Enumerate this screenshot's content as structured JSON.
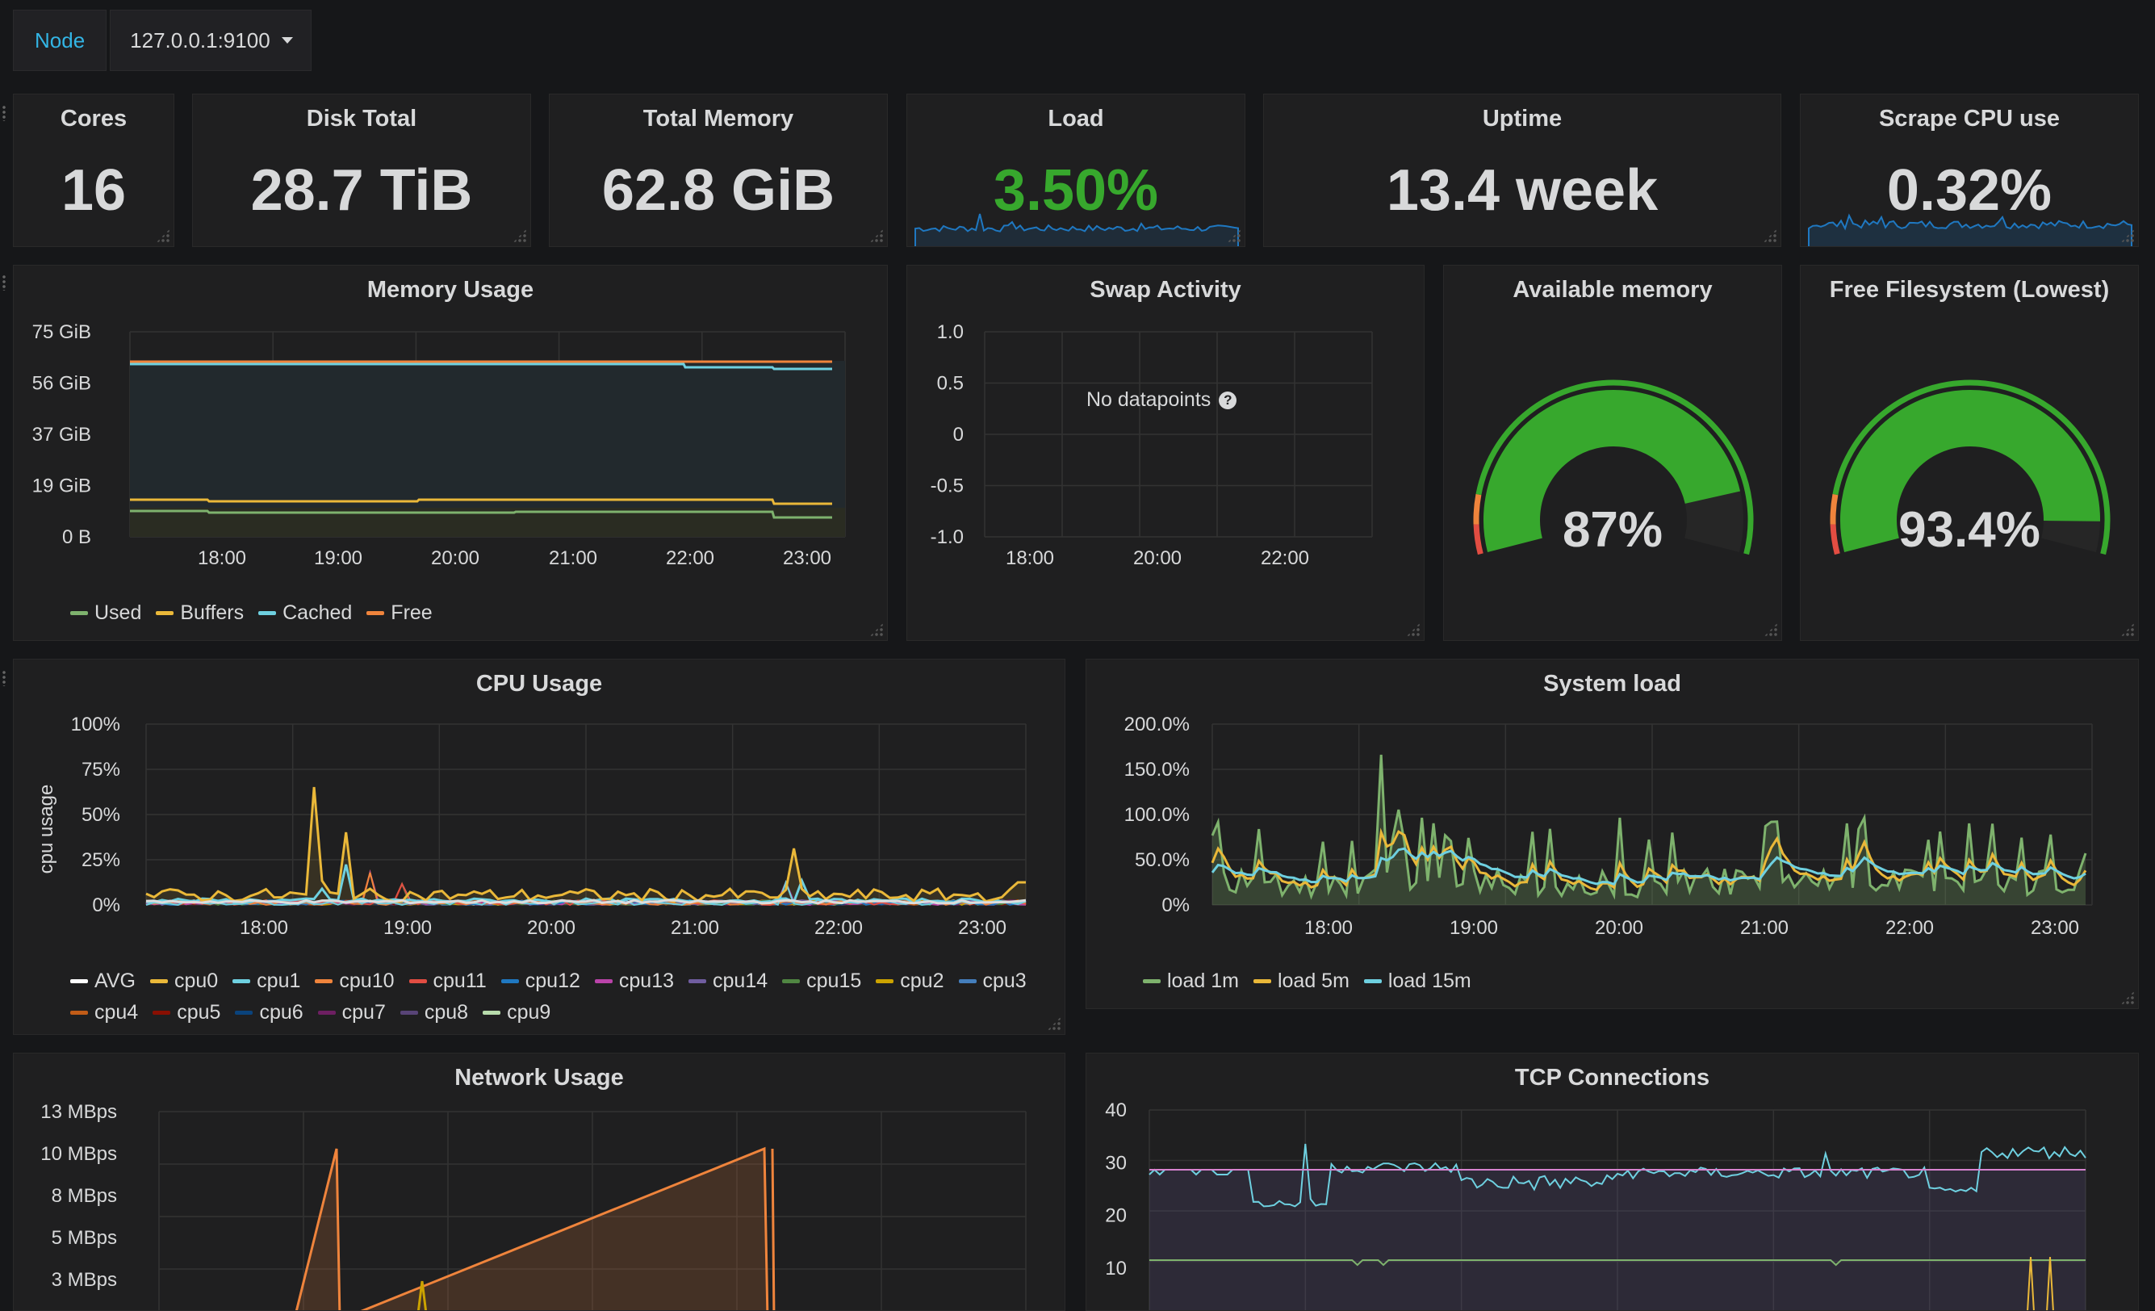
{
  "variables": {
    "label": "Node",
    "value": "127.0.0.1:9100"
  },
  "stats": {
    "cores": {
      "title": "Cores",
      "value": "16"
    },
    "disk_total": {
      "title": "Disk Total",
      "value": "28.7 TiB"
    },
    "total_memory": {
      "title": "Total Memory",
      "value": "62.8 GiB"
    },
    "load": {
      "title": "Load",
      "value": "3.50%",
      "color": "#37a82d"
    },
    "uptime": {
      "title": "Uptime",
      "value": "13.4 week"
    },
    "scrape_cpu": {
      "title": "Scrape CPU use",
      "value": "0.32%"
    }
  },
  "colors": {
    "green": "#7eb26d",
    "yellow": "#eab839",
    "cyan": "#6ed0e0",
    "orange": "#ef843c",
    "red": "#e24d42",
    "blue": "#1f78c1",
    "purple": "#ba43a9",
    "violet": "#705da0",
    "dark_green": "#508642",
    "gold": "#cca300",
    "steel": "#447ebc",
    "rust": "#c15c17",
    "maroon": "#890f02",
    "navy": "#0a437c",
    "plum": "#6d1f62",
    "lavender": "#584477",
    "light_green": "#b7dbab",
    "white": "#ffffff",
    "pink": "#d683ce",
    "gauge_green": "#37a82d",
    "gauge_orange": "#e5ac0e",
    "gauge_red": "#e24d42"
  },
  "memory_usage": {
    "title": "Memory Usage",
    "y_ticks": [
      "75 GiB",
      "56 GiB",
      "37 GiB",
      "19 GiB",
      "0 B"
    ],
    "x_ticks": [
      "18:00",
      "19:00",
      "20:00",
      "21:00",
      "22:00",
      "23:00"
    ],
    "legend": [
      "Used",
      "Buffers",
      "Cached",
      "Free"
    ]
  },
  "swap_activity": {
    "title": "Swap Activity",
    "y_ticks": [
      "1.0",
      "0.5",
      "0",
      "-0.5",
      "-1.0"
    ],
    "x_ticks": [
      "18:00",
      "20:00",
      "22:00"
    ],
    "no_data": "No datapoints"
  },
  "available_memory": {
    "title": "Available memory",
    "value": "87%",
    "fraction": 0.87
  },
  "free_filesystem": {
    "title": "Free Filesystem (Lowest)",
    "value": "93.4%",
    "fraction": 0.934
  },
  "cpu_usage": {
    "title": "CPU Usage",
    "ylabel": "cpu usage",
    "y_ticks": [
      "100%",
      "75%",
      "50%",
      "25%",
      "0%"
    ],
    "x_ticks": [
      "18:00",
      "19:00",
      "20:00",
      "21:00",
      "22:00",
      "23:00"
    ],
    "legend": [
      "AVG",
      "cpu0",
      "cpu1",
      "cpu10",
      "cpu11",
      "cpu12",
      "cpu13",
      "cpu14",
      "cpu15",
      "cpu2",
      "cpu3",
      "cpu4",
      "cpu5",
      "cpu6",
      "cpu7",
      "cpu8",
      "cpu9"
    ]
  },
  "system_load": {
    "title": "System load",
    "y_ticks": [
      "200.0%",
      "150.0%",
      "100.0%",
      "50.0%",
      "0%"
    ],
    "x_ticks": [
      "18:00",
      "19:00",
      "20:00",
      "21:00",
      "22:00",
      "23:00"
    ],
    "legend": [
      "load 1m",
      "load 5m",
      "load 15m"
    ]
  },
  "network_usage": {
    "title": "Network Usage",
    "y_ticks": [
      "13 MBps",
      "10 MBps",
      "8 MBps",
      "5 MBps",
      "3 MBps"
    ]
  },
  "tcp_connections": {
    "title": "TCP Connections",
    "y_ticks": [
      "40",
      "30",
      "20",
      "10"
    ]
  }
}
